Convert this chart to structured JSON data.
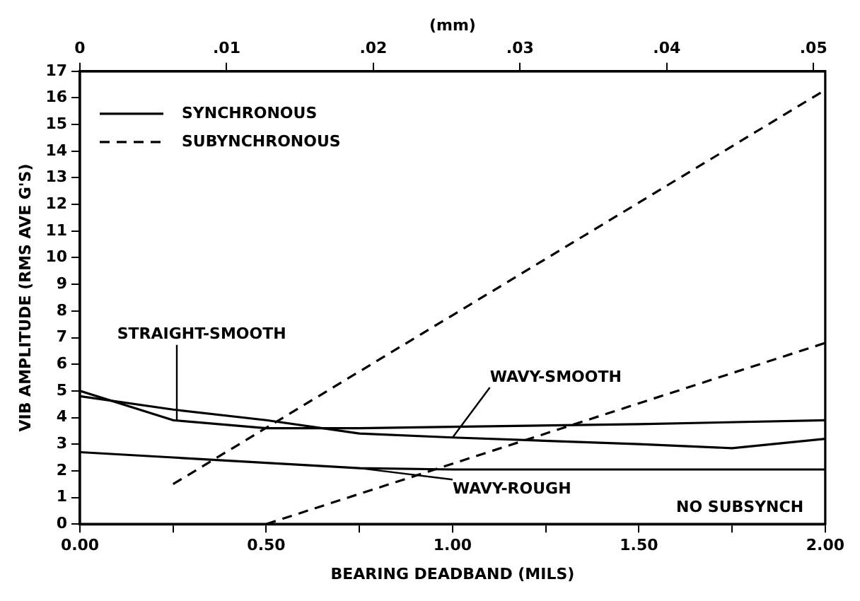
{
  "chart_data": {
    "type": "line",
    "xlabel": "BEARING DEADBAND (MILS)",
    "ylabel": "VIB AMPLITUDE (RMS AVE G'S)",
    "x2label": "(mm)",
    "xlim": [
      0,
      2
    ],
    "xticks": [
      {
        "value": 0,
        "label": "0.00"
      },
      {
        "value": 0.25,
        "label": null
      },
      {
        "value": 0.5,
        "label": "0.50"
      },
      {
        "value": 0.75,
        "label": null
      },
      {
        "value": 1,
        "label": "1.00"
      },
      {
        "value": 1.25,
        "label": null
      },
      {
        "value": 1.5,
        "label": "1.50"
      },
      {
        "value": 1.75,
        "label": null
      },
      {
        "value": 2,
        "label": "2.00"
      }
    ],
    "x2lim": [
      0,
      0.0508
    ],
    "x2ticks": [
      0,
      {
        "value": 0.01,
        "label": ".01"
      },
      {
        "value": 0.02,
        "label": ".02"
      },
      {
        "value": 0.03,
        "label": ".03"
      },
      {
        "value": 0.04,
        "label": ".04"
      },
      {
        "value": 0.05,
        "label": ".05"
      }
    ],
    "ylim": [
      0,
      17
    ],
    "yticks": [
      0,
      1,
      2,
      3,
      4,
      5,
      6,
      7,
      8,
      9,
      10,
      11,
      12,
      13,
      14,
      15,
      16,
      17
    ],
    "grid": false,
    "legend": "top left",
    "marker": "none",
    "series": [
      {
        "name": "SYNCHRONOUS",
        "color": "#000000",
        "line_style": "solid",
        "x": [
          0,
          0.25,
          0.5,
          0.75,
          1,
          1.5,
          2
        ],
        "values": [
          5.0,
          3.9,
          3.6,
          3.6,
          3.65,
          3.75,
          3.9
        ]
      },
      {
        "color": "#000000",
        "line_style": "solid",
        "x": [
          0,
          0.25,
          0.5,
          0.75,
          1,
          1.5,
          1.75,
          2
        ],
        "values": [
          4.8,
          4.3,
          3.9,
          3.4,
          3.25,
          3.0,
          2.85,
          3.2
        ]
      },
      {
        "color": "#000000",
        "line_style": "solid",
        "x": [
          0,
          0.25,
          0.5,
          0.75,
          1,
          1.5,
          2
        ],
        "values": [
          2.7,
          2.5,
          2.3,
          2.1,
          2.05,
          2.05,
          2.05
        ]
      },
      {
        "name": "SUBYNCHRONOUS",
        "color": "#000000",
        "line_style": "dashed",
        "x": [
          0.25,
          2
        ],
        "values": [
          1.5,
          16.3
        ]
      },
      {
        "color": "#000000",
        "line_style": "dashed",
        "x": [
          0.5,
          2
        ],
        "values": [
          0,
          6.8
        ]
      }
    ],
    "annotations": [
      {
        "text": "STRAIGHT-SMOOTH",
        "x": 0.26,
        "y": 3.9
      },
      {
        "text": "WAVY-SMOOTH",
        "x": 1,
        "y": 3.25
      },
      {
        "text": "WAVY-ROUGH",
        "x": 0.75,
        "y": 2.1
      },
      "NO SUBSYNCH"
    ]
  }
}
